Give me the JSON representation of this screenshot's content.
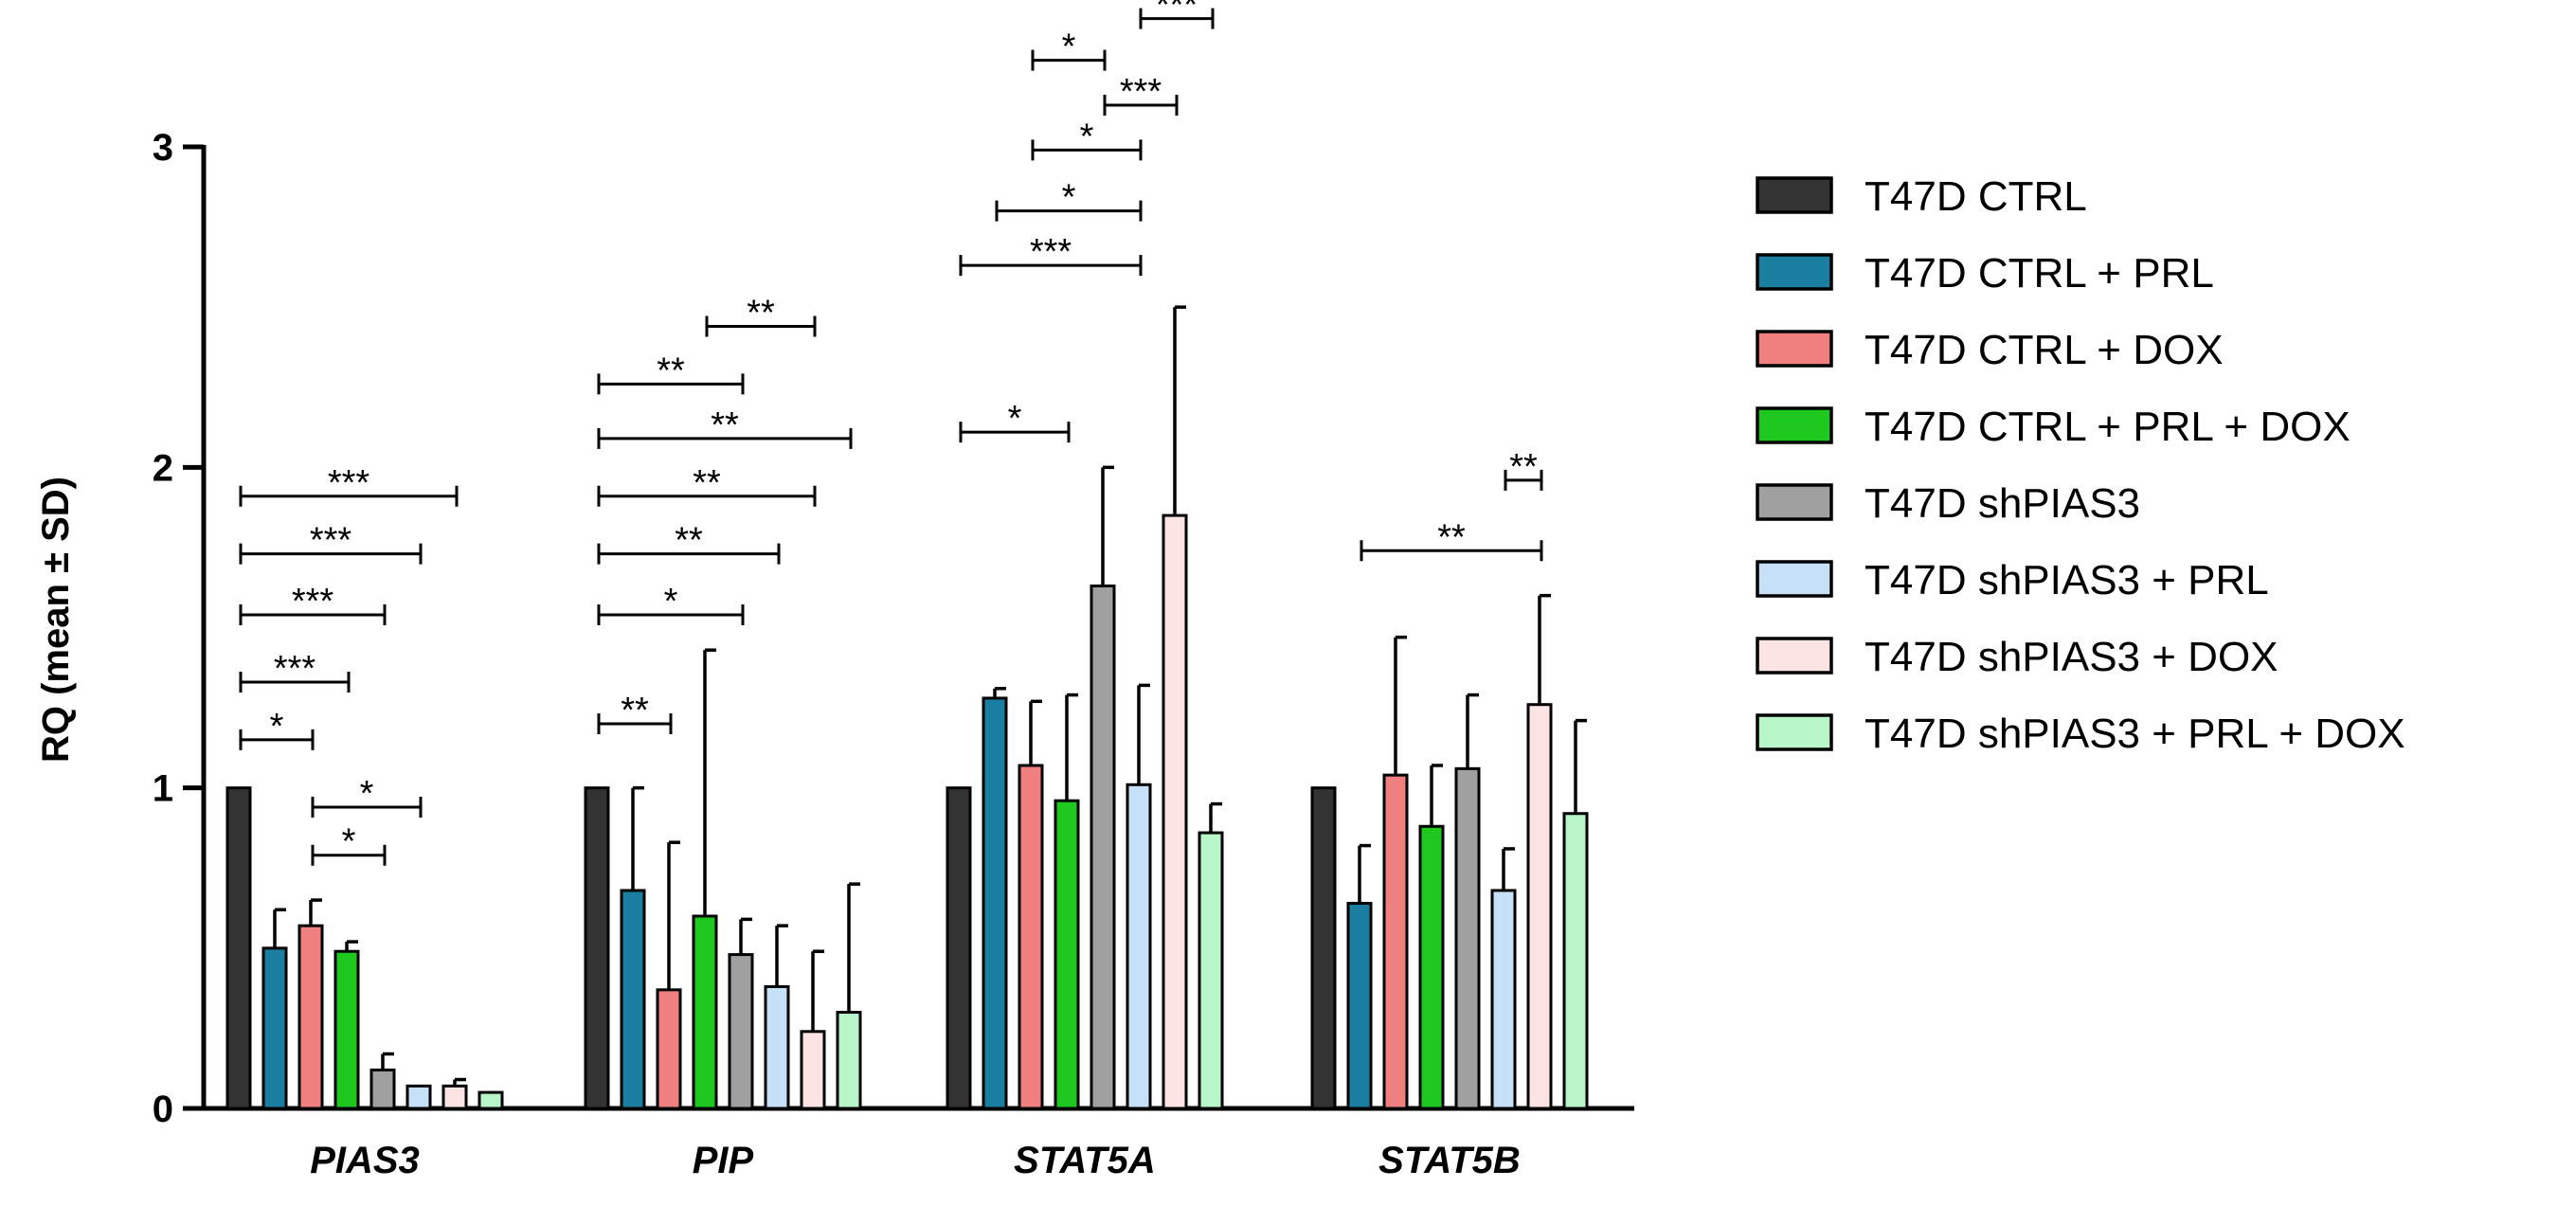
{
  "chart_data": {
    "type": "bar",
    "title": "",
    "xlabel": "",
    "ylabel": "RQ  (mean ± SD)",
    "ylim": [
      0,
      3
    ],
    "yticks": [
      "0",
      "1",
      "2",
      "3"
    ],
    "grid": false,
    "legend_position": "right",
    "categories": [
      "PIAS3",
      "PIP",
      "STAT5A",
      "STAT5B"
    ],
    "series": [
      {
        "name": "T47D CTRL",
        "color": "#333333",
        "values": [
          1.0,
          1.0,
          1.0,
          1.0
        ],
        "errors": [
          0,
          0,
          0,
          0
        ]
      },
      {
        "name": "T47D CTRL + PRL",
        "color": "#1a7ea0",
        "values": [
          0.5,
          0.68,
          1.28,
          0.64
        ],
        "errors": [
          0.12,
          0.32,
          0.03,
          0.18
        ]
      },
      {
        "name": "T47D CTRL + DOX",
        "color": "#f08080",
        "values": [
          0.57,
          0.37,
          1.07,
          1.04
        ],
        "errors": [
          0.08,
          0.46,
          0.2,
          0.43
        ]
      },
      {
        "name": "T47D CTRL  + PRL + DOX",
        "color": "#1ec81e",
        "values": [
          0.49,
          0.6,
          0.96,
          0.88
        ],
        "errors": [
          0.03,
          0.83,
          0.33,
          0.19
        ]
      },
      {
        "name": "T47D shPIAS3",
        "color": "#a0a0a0",
        "values": [
          0.12,
          0.48,
          1.63,
          1.06
        ],
        "errors": [
          0.05,
          0.11,
          0.37,
          0.23
        ]
      },
      {
        "name": "T47D shPIAS3 + PRL",
        "color": "#c6e0f7",
        "values": [
          0.07,
          0.38,
          1.01,
          0.68
        ],
        "errors": [
          0,
          0.19,
          0.31,
          0.13
        ]
      },
      {
        "name": "T47D shPIAS3 + DOX",
        "color": "#fde4e4",
        "values": [
          0.07,
          0.24,
          1.85,
          1.26
        ],
        "errors": [
          0.02,
          0.25,
          0.65,
          0.34
        ]
      },
      {
        "name": "T47D shPIAS3 + PRL + DOX",
        "color": "#b8f5c8",
        "values": [
          0.05,
          0.3,
          0.86,
          0.92
        ],
        "errors": [
          0,
          0.4,
          0.09,
          0.29
        ]
      }
    ],
    "annotations": [
      {
        "category": "PIAS3",
        "from": 0,
        "to": 6,
        "y": 1.91,
        "label": "***"
      },
      {
        "category": "PIAS3",
        "from": 0,
        "to": 5,
        "y": 1.73,
        "label": "***"
      },
      {
        "category": "PIAS3",
        "from": 0,
        "to": 4,
        "y": 1.54,
        "label": "***"
      },
      {
        "category": "PIAS3",
        "from": 0,
        "to": 3,
        "y": 1.33,
        "label": "***"
      },
      {
        "category": "PIAS3",
        "from": 0,
        "to": 2,
        "y": 1.15,
        "label": "*"
      },
      {
        "category": "PIAS3",
        "from": 2,
        "to": 5,
        "y": 0.94,
        "label": "*"
      },
      {
        "category": "PIAS3",
        "from": 2,
        "to": 4,
        "y": 0.79,
        "label": "*"
      },
      {
        "category": "PIP",
        "from": 3,
        "to": 6,
        "y": 2.44,
        "label": "**"
      },
      {
        "category": "PIP",
        "from": 0,
        "to": 4,
        "y": 2.26,
        "label": "**"
      },
      {
        "category": "PIP",
        "from": 0,
        "to": 7,
        "y": 2.09,
        "label": "**"
      },
      {
        "category": "PIP",
        "from": 0,
        "to": 6,
        "y": 1.91,
        "label": "**"
      },
      {
        "category": "PIP",
        "from": 0,
        "to": 5,
        "y": 1.73,
        "label": "**"
      },
      {
        "category": "PIP",
        "from": 0,
        "to": 4,
        "y": 1.54,
        "label": "*"
      },
      {
        "category": "PIP",
        "from": 0,
        "to": 2,
        "y": 1.2,
        "label": "**"
      },
      {
        "category": "STAT5A",
        "from": 5,
        "to": 7,
        "y": 3.4,
        "label": "***"
      },
      {
        "category": "STAT5A",
        "from": 2,
        "to": 4,
        "y": 3.27,
        "label": "*"
      },
      {
        "category": "STAT5A",
        "from": 4,
        "to": 6,
        "y": 3.13,
        "label": "***"
      },
      {
        "category": "STAT5A",
        "from": 2,
        "to": 5,
        "y": 2.99,
        "label": "*"
      },
      {
        "category": "STAT5A",
        "from": 1,
        "to": 5,
        "y": 2.8,
        "label": "*"
      },
      {
        "category": "STAT5A",
        "from": 0,
        "to": 5,
        "y": 2.63,
        "label": "***"
      },
      {
        "category": "STAT5A",
        "from": 0,
        "to": 3,
        "y": 2.11,
        "label": "*"
      },
      {
        "category": "STAT5B",
        "from": 5,
        "to": 6,
        "y": 1.96,
        "label": "**"
      },
      {
        "category": "STAT5B",
        "from": 1,
        "to": 6,
        "y": 1.74,
        "label": "**"
      }
    ]
  }
}
